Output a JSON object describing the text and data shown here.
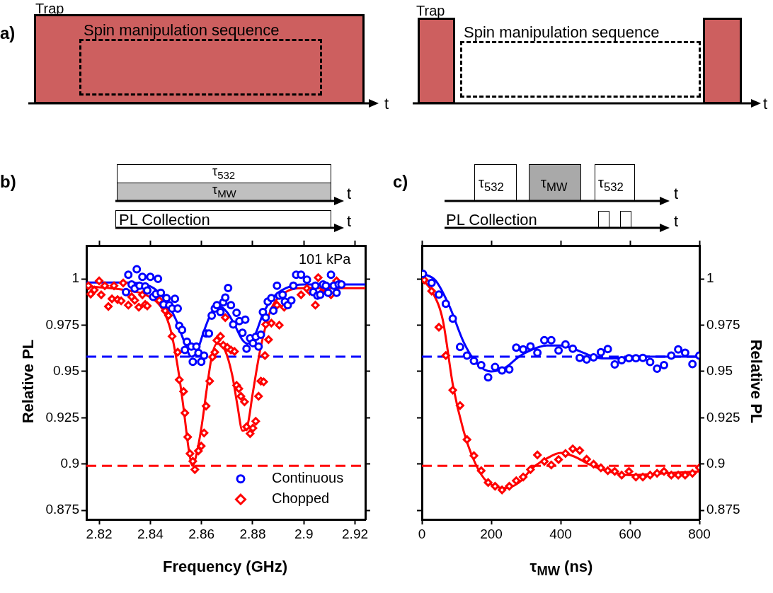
{
  "chart_data": [
    {
      "type": "other",
      "title": "a)",
      "annotations": [
        "Trap",
        "Spin manipulation sequence",
        "t",
        "Trap",
        "Spin manipulation sequence",
        "t"
      ]
    },
    {
      "type": "scatter",
      "title": "b)",
      "xlabel": "Frequency (GHz)",
      "ylabel": "Relative PL",
      "xlim": [
        2.815,
        2.924
      ],
      "xticks": [
        2.82,
        2.84,
        2.86,
        2.88,
        2.9,
        2.92
      ],
      "ylim": [
        0.87,
        1.018
      ],
      "yticks": [
        0.875,
        0.9,
        0.925,
        0.95,
        0.975,
        1
      ],
      "legend": "bottom right",
      "annotations": [
        "101 kPa",
        "τ$_{532}$",
        "τ$_{MW}$",
        "t",
        "PL Collection",
        "t"
      ],
      "ref_lines": [
        {
          "axis": "y",
          "value": 0.958,
          "color": "#0000ff",
          "line_style": "dashed"
        },
        {
          "axis": "y",
          "value": 0.899,
          "color": "#ff0000",
          "line_style": "dashed"
        }
      ],
      "series": [
        {
          "name": "Continuous",
          "type": "scatter",
          "marker": "circle",
          "color": "#0000ff",
          "x": [
            2.8305,
            2.8314,
            2.8347,
            2.8327,
            2.8339,
            2.8358,
            2.8369,
            2.838,
            2.8388,
            2.84,
            2.8411,
            2.843,
            2.8422,
            2.8441,
            2.8452,
            2.8463,
            2.8474,
            2.8485,
            2.8496,
            2.8507,
            2.8513,
            2.8524,
            2.8535,
            2.8543,
            2.856,
            2.8566,
            2.858,
            2.8588,
            2.8599,
            2.861,
            2.8618,
            2.8629,
            2.864,
            2.8652,
            2.866,
            2.8674,
            2.8685,
            2.8693,
            2.8704,
            2.8715,
            2.8724,
            2.8737,
            2.8748,
            2.876,
            2.8771,
            2.8776,
            2.879,
            2.8801,
            2.8812,
            2.8823,
            2.8832,
            2.884,
            2.8851,
            2.8859,
            2.8873,
            2.8881,
            2.8895,
            2.8904,
            2.8917,
            2.8926,
            2.8937,
            2.8951,
            2.8959,
            2.897,
            2.8989,
            2.9012,
            2.9037,
            2.9045,
            2.9053,
            2.9064,
            2.9075,
            2.9086,
            2.9095,
            2.9106,
            2.9117,
            2.9128,
            2.9136,
            2.9147
          ],
          "values": [
            0.9929,
            1.0022,
            1.0052,
            0.997,
            0.9948,
            0.9963,
            1.0011,
            0.9959,
            0.9937,
            1.0011,
            0.9903,
            1.0,
            0.9918,
            0.9925,
            0.9862,
            0.9896,
            0.9858,
            0.984,
            0.9892,
            0.984,
            0.9746,
            0.9724,
            0.9616,
            0.966,
            0.9634,
            0.9552,
            0.9634,
            0.96,
            0.9552,
            0.9586,
            0.9705,
            0.9705,
            0.9802,
            0.984,
            0.9858,
            0.9821,
            0.9873,
            0.9899,
            0.9951,
            0.9858,
            0.9754,
            0.9817,
            0.9772,
            0.9709,
            0.978,
            0.9623,
            0.9679,
            0.9653,
            0.9687,
            0.9634,
            0.9698,
            0.9821,
            0.9791,
            0.9877,
            0.9896,
            0.9828,
            0.9963,
            0.991,
            0.9914,
            0.9877,
            0.9858,
            0.9884,
            0.9963,
            1.0022,
            1.0022,
            0.9996,
            0.9929,
            0.9963,
            0.991,
            0.9914,
            0.997,
            0.9963,
            0.9925,
            1.0022,
            0.9963,
            0.9925,
            0.997,
            0.997
          ]
        },
        {
          "name": "Chopped",
          "type": "scatter",
          "marker": "diamond",
          "color": "#ff0000",
          "x": [
            2.8158,
            2.8167,
            2.8181,
            2.82,
            2.8208,
            2.8222,
            2.8236,
            2.825,
            2.8258,
            2.8272,
            2.8286,
            2.8294,
            2.8314,
            2.8327,
            2.8339,
            2.8355,
            2.8369,
            2.838,
            2.8388,
            2.8435,
            2.8458,
            2.8471,
            2.8485,
            2.8507,
            2.8513,
            2.853,
            2.8535,
            2.8546,
            2.8555,
            2.8566,
            2.8574,
            2.8588,
            2.8599,
            2.861,
            2.8618,
            2.8632,
            2.8643,
            2.8652,
            2.866,
            2.8674,
            2.8685,
            2.8693,
            2.8701,
            2.8715,
            2.8729,
            2.8737,
            2.8746,
            2.8754,
            2.8768,
            2.8776,
            2.879,
            2.8801,
            2.8812,
            2.8823,
            2.8832,
            2.8843,
            2.8848,
            2.8851,
            2.8862,
            2.8873,
            2.8895,
            2.8904,
            2.8923,
            2.8948,
            2.8989,
            2.9012,
            2.9023,
            2.9045,
            2.9056,
            2.9067,
            2.9078,
            2.9106,
            2.9128
          ],
          "values": [
            0.9963,
            0.9918,
            0.994,
            0.9989,
            0.9914,
            0.9963,
            0.9851,
            0.9892,
            0.9963,
            0.9888,
            0.9881,
            0.9978,
            0.9858,
            0.9903,
            0.9884,
            0.9847,
            0.9914,
            0.9862,
            0.9854,
            0.9884,
            0.9828,
            0.9802,
            0.969,
            0.9604,
            0.9455,
            0.9392,
            0.9276,
            0.9146,
            0.9056,
            0.9015,
            0.897,
            0.9071,
            0.9097,
            0.9168,
            0.9313,
            0.9448,
            0.9578,
            0.9604,
            0.9668,
            0.969,
            0.9642,
            0.9791,
            0.963,
            0.9616,
            0.9608,
            0.9425,
            0.9407,
            0.9366,
            0.9336,
            0.9201,
            0.9164,
            0.9194,
            0.9231,
            0.9366,
            0.9448,
            0.9444,
            0.9586,
            0.9754,
            0.9672,
            0.9761,
            0.9858,
            0.975,
            0.9847,
            null,
            0.9914,
            0.9948,
            0.9933,
            0.9858,
            1.0007,
            0.9922,
            0.9951,
            0.9914,
            0.9989
          ]
        },
        {
          "type": "line",
          "marker": "none",
          "line_style": "solid",
          "color": "#0000ff",
          "x": [
            2.815,
            2.83,
            2.84,
            2.845,
            2.85,
            2.853,
            2.856,
            2.858,
            2.861,
            2.864,
            2.867,
            2.87,
            2.873,
            2.876,
            2.878,
            2.881,
            2.884,
            2.888,
            2.893,
            2.9,
            2.924
          ],
          "values": [
            0.998,
            0.998,
            0.996,
            0.99,
            0.978,
            0.967,
            0.958,
            0.96,
            0.972,
            0.982,
            0.985,
            0.982,
            0.975,
            0.967,
            0.965,
            0.97,
            0.981,
            0.99,
            0.995,
            0.997,
            0.997
          ]
        },
        {
          "type": "line",
          "marker": "none",
          "line_style": "solid",
          "color": "#ff0000",
          "x": [
            2.815,
            2.83,
            2.84,
            2.845,
            2.848,
            2.851,
            2.853,
            2.855,
            2.8565,
            2.858,
            2.86,
            2.862,
            2.864,
            2.866,
            2.869,
            2.872,
            2.874,
            2.876,
            2.878,
            2.88,
            2.883,
            2.887,
            2.892,
            2.9,
            2.924
          ],
          "values": [
            0.996,
            0.994,
            0.99,
            0.983,
            0.972,
            0.95,
            0.93,
            0.908,
            0.899,
            0.905,
            0.92,
            0.94,
            0.958,
            0.965,
            0.962,
            0.948,
            0.932,
            0.918,
            0.921,
            0.938,
            0.962,
            0.983,
            0.992,
            0.995,
            0.995
          ]
        }
      ]
    },
    {
      "type": "scatter",
      "title": "c)",
      "xlabel": "τ$_{MW}$ (ns)",
      "ylabel": "Relative PL",
      "xlim": [
        0,
        800
      ],
      "xticks": [
        0,
        200,
        400,
        600,
        800
      ],
      "ylim": [
        0.87,
        1.018
      ],
      "yticks": [
        0.875,
        0.9,
        0.925,
        0.95,
        0.975,
        1
      ],
      "annotations": [
        "τ$_{532}$",
        "τ$_{MW}$",
        "τ$_{532}$",
        "t",
        "PL Collection",
        "t"
      ],
      "ref_lines": [
        {
          "axis": "y",
          "value": 0.958,
          "color": "#0000ff",
          "line_style": "dashed"
        },
        {
          "axis": "y",
          "value": 0.899,
          "color": "#ff0000",
          "line_style": "dashed"
        }
      ],
      "series": [
        {
          "type": "scatter",
          "marker": "circle",
          "color": "#0000ff",
          "x": [
            3,
            28,
            49,
            69,
            89,
            110,
            130,
            150,
            171,
            191,
            211,
            231,
            252,
            272,
            292,
            313,
            333,
            353,
            373,
            394,
            414,
            435,
            455,
            475,
            495,
            516,
            536,
            556,
            576,
            597,
            617,
            637,
            658,
            678,
            698,
            719,
            739,
            759,
            780,
            800
          ],
          "values": [
            1.0027,
            0.9978,
            0.9915,
            0.9866,
            0.9785,
            0.9632,
            0.9586,
            0.9557,
            0.9534,
            0.9468,
            0.9524,
            0.9505,
            0.9511,
            0.9629,
            0.9619,
            0.9635,
            0.9601,
            0.9669,
            0.9669,
            0.9613,
            0.9646,
            0.9623,
            0.9573,
            0.9565,
            0.9576,
            0.9604,
            0.9621,
            0.9538,
            0.9561,
            0.9571,
            0.9571,
            0.9573,
            0.9551,
            0.9515,
            0.9534,
            0.9586,
            0.9619,
            0.9601,
            0.954,
            0.9586
          ]
        },
        {
          "type": "scatter",
          "marker": "diamond",
          "color": "#ff0000",
          "x": [
            7,
            28,
            49,
            69,
            89,
            110,
            130,
            150,
            171,
            191,
            211,
            231,
            252,
            272,
            292,
            313,
            333,
            353,
            373,
            394,
            414,
            435,
            455,
            475,
            495,
            516,
            536,
            556,
            576,
            597,
            617,
            637,
            658,
            678,
            698,
            719,
            739,
            759,
            780,
            800
          ],
          "values": [
            0.9994,
            0.9934,
            0.9739,
            0.9586,
            0.9399,
            0.9316,
            0.9132,
            0.9045,
            0.8964,
            0.89,
            0.888,
            0.886,
            0.888,
            0.891,
            0.893,
            0.897,
            0.9049,
            0.9014,
            0.8995,
            0.9024,
            0.9057,
            0.9082,
            0.9073,
            0.9026,
            0.8999,
            0.8979,
            0.8964,
            0.896,
            0.894,
            0.896,
            0.893,
            0.893,
            0.894,
            0.895,
            0.896,
            0.894,
            0.894,
            0.894,
            0.895,
            0.898
          ]
        },
        {
          "type": "line",
          "marker": "none",
          "line_style": "solid",
          "color": "#0000ff",
          "x": [
            0,
            40,
            80,
            120,
            160,
            200,
            240,
            280,
            320,
            360,
            400,
            440,
            480,
            520,
            560,
            600,
            700,
            800
          ],
          "values": [
            1.003,
            0.999,
            0.985,
            0.966,
            0.954,
            0.95,
            0.952,
            0.958,
            0.962,
            0.964,
            0.964,
            0.962,
            0.959,
            0.957,
            0.957,
            0.958,
            0.958,
            0.958
          ]
        },
        {
          "type": "line",
          "marker": "none",
          "line_style": "solid",
          "color": "#ff0000",
          "x": [
            0,
            30,
            60,
            90,
            120,
            150,
            180,
            210,
            240,
            280,
            320,
            360,
            400,
            440,
            480,
            520,
            600,
            700,
            800
          ],
          "values": [
            1.0,
            0.993,
            0.978,
            0.942,
            0.918,
            0.902,
            0.892,
            0.888,
            0.887,
            0.89,
            0.898,
            0.903,
            0.906,
            0.904,
            0.9,
            0.897,
            0.894,
            0.895,
            0.896
          ]
        }
      ]
    }
  ]
}
